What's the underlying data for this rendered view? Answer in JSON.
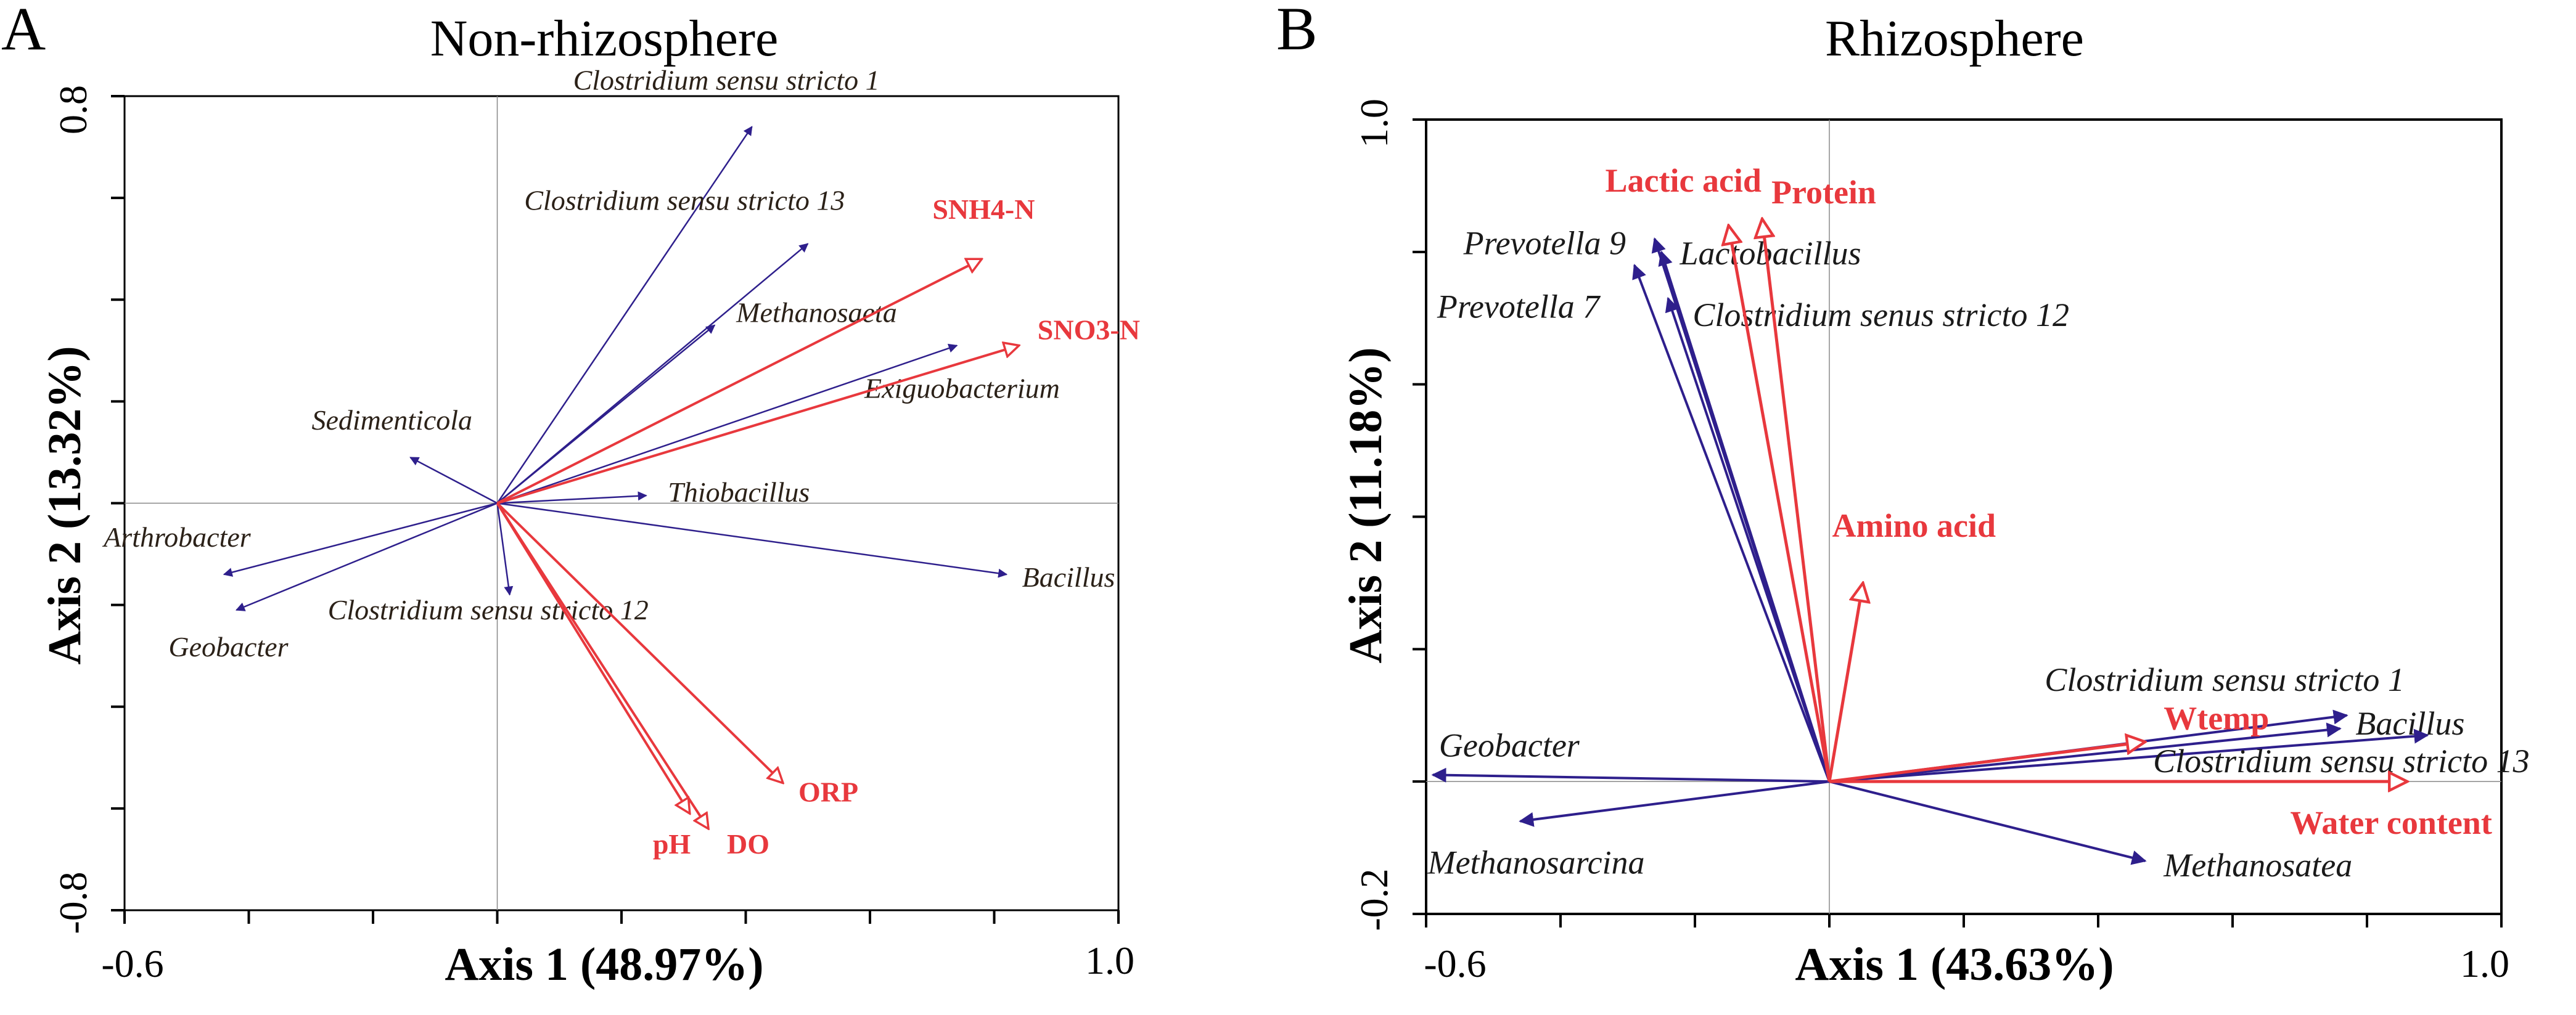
{
  "colors": {
    "species": "#2e1f8c",
    "environment": "#e8383d",
    "frame": "#000000",
    "zero_line": "#888888"
  },
  "chart_data": [
    {
      "type": "scatter",
      "subtype": "rda-biplot",
      "panel_letter": "A",
      "title": "Non-rhizosphere",
      "xlabel": "Axis 1 (48.97%)",
      "ylabel": "Axis 2 (13.32%)",
      "xlim": [
        -0.6,
        1.0
      ],
      "ylim": [
        -0.8,
        0.8
      ],
      "x_tick_labels": [
        "-0.6",
        "1.0"
      ],
      "y_tick_labels": [
        "0.8",
        "-0.8"
      ],
      "x_ticks": [
        -0.6,
        -0.4,
        -0.2,
        0,
        0.2,
        0.4,
        0.6,
        0.8,
        1.0
      ],
      "y_ticks": [
        0.8,
        0.6,
        0.4,
        0.2,
        0,
        -0.2,
        -0.4,
        -0.6,
        -0.8
      ],
      "species_arrows": [
        {
          "name": "Clostridium sensu stricto 1",
          "x": 0.41,
          "y": 0.74
        },
        {
          "name": "Clostridium sensu stricto 13",
          "x": 0.5,
          "y": 0.51
        },
        {
          "name": "Methanosaeta",
          "x": 0.35,
          "y": 0.35
        },
        {
          "name": "Exiguobacterium",
          "x": 0.74,
          "y": 0.31
        },
        {
          "name": "Sedimenticola",
          "x": -0.14,
          "y": 0.09
        },
        {
          "name": "Thiobacillus",
          "x": 0.24,
          "y": 0.015
        },
        {
          "name": "Bacillus",
          "x": 0.82,
          "y": -0.14
        },
        {
          "name": "Arthrobacter",
          "x": -0.44,
          "y": -0.14
        },
        {
          "name": "Geobacter",
          "x": -0.42,
          "y": -0.21
        },
        {
          "name": "Clostridium sensu stricto 12",
          "x": 0.02,
          "y": -0.18
        }
      ],
      "environment_arrows": [
        {
          "name": "SNH4-N",
          "x": 0.78,
          "y": 0.48
        },
        {
          "name": "SNO3-N",
          "x": 0.84,
          "y": 0.31
        },
        {
          "name": "ORP",
          "x": 0.46,
          "y": -0.55
        },
        {
          "name": "pH",
          "x": 0.31,
          "y": -0.61
        },
        {
          "name": "DO",
          "x": 0.34,
          "y": -0.64
        }
      ]
    },
    {
      "type": "scatter",
      "subtype": "rda-biplot",
      "panel_letter": "B",
      "title": "Rhizosphere",
      "xlabel": "Axis 1 (43.63%)",
      "ylabel": "Axis 2 (11.18%)",
      "xlim": [
        -0.6,
        1.0
      ],
      "ylim": [
        -0.2,
        1.0
      ],
      "x_tick_labels": [
        "-0.6",
        "1.0"
      ],
      "y_tick_labels": [
        "1.0",
        "-0.2"
      ],
      "x_ticks": [
        -0.6,
        -0.4,
        -0.2,
        0,
        0.2,
        0.4,
        0.6,
        0.8,
        1.0
      ],
      "y_ticks": [
        1.0,
        0.8,
        0.6,
        0.4,
        0.2,
        0,
        -0.2
      ],
      "species_arrows": [
        {
          "name": "Prevotella 9",
          "x": -0.26,
          "y": 0.82
        },
        {
          "name": "Lactobacillus",
          "x": -0.25,
          "y": 0.8
        },
        {
          "name": "Prevotella 7",
          "x": -0.29,
          "y": 0.78
        },
        {
          "name": "Clostridium senus stricto 12",
          "x": -0.24,
          "y": 0.73
        },
        {
          "name": "Geobacter",
          "x": -0.59,
          "y": 0.01
        },
        {
          "name": "Methanosarcina",
          "x": -0.46,
          "y": -0.06
        },
        {
          "name": "Methanosatea",
          "x": 0.47,
          "y": -0.12
        },
        {
          "name": "Clostridium sensu stricto 1",
          "x": 0.77,
          "y": 0.1
        },
        {
          "name": "Bacillus",
          "x": 0.76,
          "y": 0.08
        },
        {
          "name": "Clostridium sensu stricto 13",
          "x": 0.89,
          "y": 0.07
        }
      ],
      "environment_arrows": [
        {
          "name": "Lactic acid",
          "x": -0.15,
          "y": 0.84
        },
        {
          "name": "Protein",
          "x": -0.1,
          "y": 0.85
        },
        {
          "name": "Amino acid",
          "x": 0.05,
          "y": 0.3
        },
        {
          "name": "Wtemp",
          "x": 0.47,
          "y": 0.06
        },
        {
          "name": "Water content",
          "x": 0.86,
          "y": 0.0
        }
      ]
    }
  ]
}
